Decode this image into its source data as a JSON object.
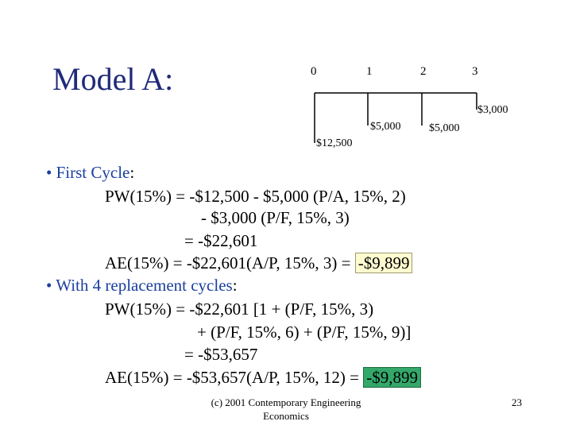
{
  "title": "Model A:",
  "cashflow": {
    "periods": [
      "0",
      "1",
      "2",
      "3"
    ],
    "amounts": {
      "p0": "$12,500",
      "p1": "$5,000",
      "p2": "$5,000",
      "p3": "$3,000"
    }
  },
  "content": {
    "b1": {
      "bullet": "•",
      "label": "First Cycle",
      "colon": ":",
      "l1": "PW(15%) = -$12,500 - $5,000 (P/A, 15%, 2)",
      "l2": "- $3,000 (P/F, 15%, 3)",
      "l3": "= -$22,601",
      "l4_pre": "AE(15%) = -$22,601(A/P, 15%, 3) = ",
      "l4_hl": "-$9,899"
    },
    "b2": {
      "bullet": "•",
      "label": "With 4 replacement cycles",
      "colon": ":",
      "l1": "PW(15%) = -$22,601 [1 + (P/F, 15%, 3)",
      "l2": "+ (P/F, 15%, 6) + (P/F, 15%, 9)]",
      "l3": "= -$53,657",
      "l4_pre": "AE(15%) = -$53,657(A/P, 15%, 12) = ",
      "l4_hl": "-$9,899"
    }
  },
  "footer": {
    "line1": "(c) 2001 Contemporary Engineering",
    "line2": "Economics",
    "page": "23"
  }
}
